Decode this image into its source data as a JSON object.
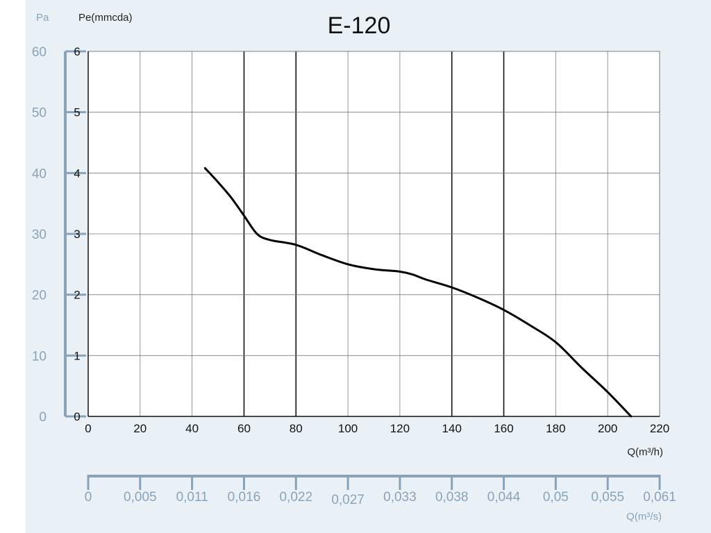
{
  "chart_data": {
    "type": "line",
    "title": "E-120",
    "y_label_pa": "Pa",
    "y_label_mmcda": "Pe(mmcda)",
    "x_label_m3h": "Q(m³/h)",
    "x_label_m3s": "Q(m³/s)",
    "xlim": [
      0,
      220
    ],
    "ylim": [
      0,
      6
    ],
    "x_ticks": [
      "0",
      "20",
      "40",
      "60",
      "80",
      "100",
      "120",
      "140",
      "160",
      "180",
      "200",
      "220"
    ],
    "y_ticks": [
      "0",
      "1",
      "2",
      "3",
      "4",
      "5",
      "6"
    ],
    "pa_ticks": [
      "0",
      "10",
      "20",
      "30",
      "40",
      "50",
      "60"
    ],
    "m3s_ticks": [
      "0",
      "0,005",
      "0,011",
      "0,016",
      "0,022",
      "0,027",
      "0,033",
      "0,038",
      "0,044",
      "0,05",
      "0,055",
      "0,061"
    ],
    "grid": true,
    "series": [
      {
        "x": [
          45,
          50,
          55,
          60,
          65,
          70,
          80,
          90,
          100,
          110,
          120,
          125,
          130,
          140,
          150,
          160,
          170,
          180,
          190,
          200,
          209
        ],
        "y": [
          4.08,
          3.85,
          3.6,
          3.3,
          3.0,
          2.9,
          2.82,
          2.65,
          2.5,
          2.42,
          2.38,
          2.33,
          2.25,
          2.12,
          1.95,
          1.75,
          1.5,
          1.22,
          0.8,
          0.4,
          0.0
        ]
      }
    ]
  },
  "colors": {
    "background_panel": "#eaf1f6",
    "plot_background": "#ffffff",
    "grid": "#7a7a7a",
    "grid_strong": "#111111",
    "curve": "#000000",
    "secondary_axis": "#8aa2b8"
  }
}
